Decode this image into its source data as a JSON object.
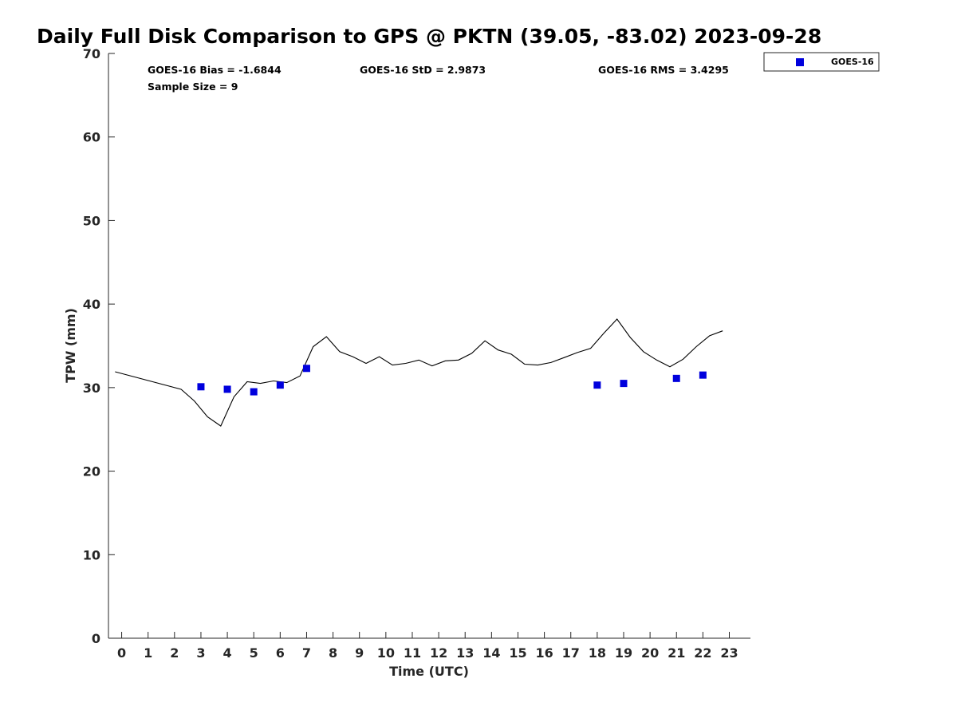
{
  "chart_data": {
    "type": "line",
    "title": "Daily Full Disk Comparison to GPS @ PKTN (39.05, -83.02) 2023-09-28",
    "xlabel": "Time (UTC)",
    "ylabel": "TPW (mm)",
    "xlim": [
      -0.5,
      23.8
    ],
    "ylim": [
      0,
      70
    ],
    "xticks": [
      0,
      1,
      2,
      3,
      4,
      5,
      6,
      7,
      8,
      9,
      10,
      11,
      12,
      13,
      14,
      15,
      16,
      17,
      18,
      19,
      20,
      21,
      22,
      23
    ],
    "yticks": [
      0,
      10,
      20,
      30,
      40,
      50,
      60,
      70
    ],
    "grid": false,
    "stats": {
      "bias": "GOES-16 Bias = -1.6844",
      "std": "GOES-16 StD = 2.9873",
      "rms": "GOES-16 RMS = 3.4295",
      "sample_size": "Sample Size = 9"
    },
    "legend": {
      "position": "outside-top-right",
      "entries": [
        "GOES-16"
      ]
    },
    "series": [
      {
        "kind": "line",
        "color": "#000000",
        "x": [
          -0.25,
          2.25,
          2.75,
          3.25,
          3.75,
          4.25,
          4.75,
          5.25,
          5.75,
          6.25,
          6.75,
          7.25,
          7.75,
          8.25,
          8.75,
          9.25,
          9.75,
          10.25,
          10.75,
          11.25,
          11.75,
          12.25,
          12.75,
          13.25,
          13.75,
          14.25,
          14.75,
          15.25,
          15.75,
          16.25,
          16.75,
          17.25,
          17.75,
          18.25,
          18.75,
          19.25,
          19.75,
          20.25,
          20.75,
          21.25,
          21.75,
          22.25,
          22.75
        ],
        "y": [
          31.9,
          29.8,
          28.4,
          26.5,
          25.4,
          28.9,
          30.7,
          30.5,
          30.8,
          30.6,
          31.4,
          34.9,
          36.1,
          34.3,
          33.7,
          32.9,
          33.7,
          32.7,
          32.9,
          33.3,
          32.6,
          33.2,
          33.3,
          34.1,
          35.6,
          34.5,
          34.0,
          32.8,
          32.7,
          33.0,
          33.6,
          34.2,
          34.7,
          36.5,
          38.2,
          36.0,
          34.3,
          33.3,
          32.5,
          33.4,
          34.9,
          36.2,
          36.8
        ]
      },
      {
        "name": "GOES-16",
        "kind": "scatter",
        "color": "#0000dd",
        "marker": "square",
        "x": [
          3,
          4,
          5,
          6,
          7,
          18,
          19,
          21,
          22
        ],
        "y": [
          30.1,
          29.8,
          29.5,
          30.3,
          32.3,
          30.3,
          30.5,
          31.1,
          31.5
        ]
      }
    ]
  }
}
